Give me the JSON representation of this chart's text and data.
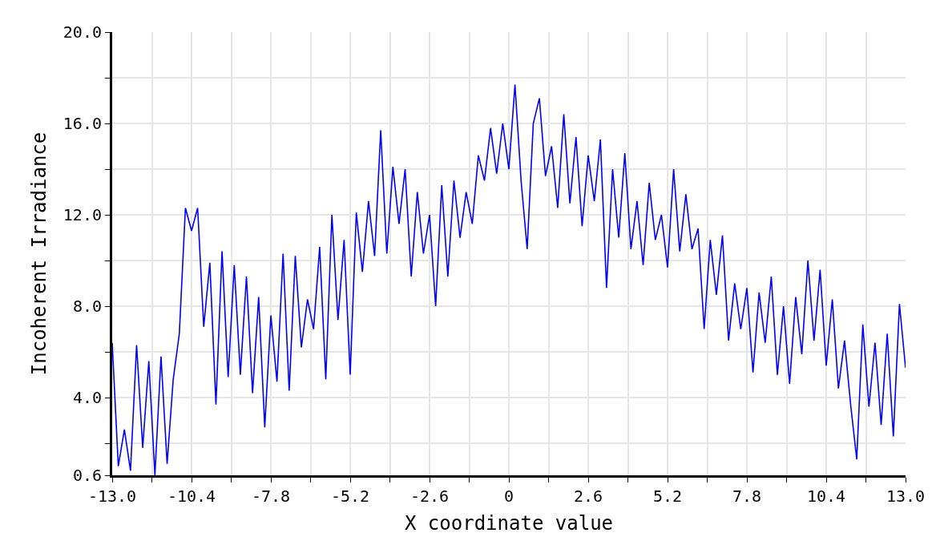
{
  "chart_data": {
    "type": "line",
    "xlabel": "X coordinate value",
    "ylabel": "Incoherent Irradiance",
    "x": [
      -13,
      -12.8,
      -12.6,
      -12.4,
      -12.2,
      -12,
      -11.8,
      -11.6,
      -11.4,
      -11.2,
      -11,
      -10.8,
      -10.6,
      -10.4,
      -10.2,
      -10,
      -9.8,
      -9.6,
      -9.4,
      -9.2,
      -9,
      -8.8,
      -8.6,
      -8.4,
      -8.2,
      -8,
      -7.8,
      -7.6,
      -7.4,
      -7.2,
      -7,
      -6.8,
      -6.6,
      -6.4,
      -6.2,
      -6,
      -5.8,
      -5.6,
      -5.4,
      -5.2,
      -5,
      -4.8,
      -4.6,
      -4.4,
      -4.2,
      -4,
      -3.8,
      -3.6,
      -3.4,
      -3.2,
      -3,
      -2.8,
      -2.6,
      -2.4,
      -2.2,
      -2,
      -1.8,
      -1.6,
      -1.4,
      -1.2,
      -1,
      -0.8,
      -0.6,
      -0.4,
      -0.2,
      0,
      0.2,
      0.4,
      0.6,
      0.8,
      1,
      1.2,
      1.4,
      1.6,
      1.8,
      2,
      2.2,
      2.4,
      2.6,
      2.8,
      3,
      3.2,
      3.4,
      3.6,
      3.8,
      4,
      4.2,
      4.4,
      4.6,
      4.8,
      5,
      5.2,
      5.4,
      5.6,
      5.8,
      6,
      6.2,
      6.4,
      6.6,
      6.8,
      7,
      7.2,
      7.4,
      7.6,
      7.8,
      8,
      8.2,
      8.4,
      8.6,
      8.8,
      9,
      9.2,
      9.4,
      9.6,
      9.8,
      10,
      10.2,
      10.4,
      10.6,
      10.8,
      11,
      11.2,
      11.4,
      11.6,
      11.8,
      12,
      12.2,
      12.4,
      12.6,
      12.8,
      13
    ],
    "series": [
      {
        "color": "#0000ff",
        "values": [
          6.4,
          1.0,
          2.6,
          0.8,
          6.3,
          1.8,
          5.6,
          0.6,
          5.8,
          1.1,
          4.8,
          6.8,
          12.3,
          11.3,
          12.3,
          7.1,
          9.9,
          3.7,
          10.4,
          4.9,
          9.8,
          5.0,
          9.3,
          4.2,
          8.4,
          2.7,
          7.6,
          4.7,
          10.3,
          4.3,
          10.2,
          6.2,
          8.3,
          7.0,
          10.6,
          4.8,
          12.0,
          7.4,
          10.9,
          5.0,
          12.1,
          9.5,
          12.6,
          10.2,
          15.7,
          10.3,
          14.1,
          11.6,
          14.0,
          9.3,
          13.0,
          10.3,
          12.0,
          8.0,
          13.3,
          9.3,
          13.5,
          11.0,
          13.0,
          11.6,
          14.6,
          13.5,
          15.8,
          13.8,
          16.0,
          14.0,
          17.7,
          13.5,
          10.5,
          16.0,
          17.1,
          13.7,
          15.0,
          12.3,
          16.4,
          12.5,
          15.4,
          11.5,
          14.6,
          12.6,
          15.3,
          8.8,
          14.0,
          11.0,
          14.7,
          10.5,
          12.6,
          9.8,
          13.4,
          10.9,
          12.0,
          9.7,
          14.0,
          10.4,
          12.9,
          10.5,
          11.4,
          7.0,
          10.9,
          8.5,
          11.1,
          6.5,
          9.0,
          7.0,
          8.8,
          5.1,
          8.6,
          6.4,
          9.3,
          5.0,
          8.0,
          4.6,
          8.4,
          5.9,
          10.0,
          6.5,
          9.6,
          5.4,
          8.3,
          4.4,
          6.5,
          3.7,
          1.3,
          7.2,
          3.6,
          6.4,
          2.8,
          6.8,
          2.3,
          8.1,
          5.3
        ]
      }
    ],
    "xlim": [
      -13,
      13
    ],
    "xticks": [
      {
        "value": -13,
        "label": "-13.0"
      },
      {
        "value": -11.7,
        "label": null
      },
      {
        "value": -10.4,
        "label": "-10.4"
      },
      {
        "value": -9.1,
        "label": null
      },
      {
        "value": -7.8,
        "label": "-7.8"
      },
      {
        "value": -6.5,
        "label": null
      },
      {
        "value": -5.2,
        "label": "-5.2"
      },
      {
        "value": -3.9,
        "label": null
      },
      {
        "value": -2.6,
        "label": "-2.6"
      },
      {
        "value": -1.3,
        "label": null
      },
      0,
      {
        "value": 1.3,
        "label": null
      },
      2.6,
      {
        "value": 3.9,
        "label": null
      },
      5.2,
      {
        "value": 6.5,
        "label": null
      },
      7.8,
      {
        "value": 9.1,
        "label": null
      },
      10.4,
      {
        "value": 11.7,
        "label": null
      },
      {
        "value": 13,
        "label": "13.0"
      }
    ],
    "ylim": [
      0.6,
      20
    ],
    "yticks": [
      0.6,
      {
        "value": 2,
        "label": null
      },
      {
        "value": 4,
        "label": "4.0"
      },
      {
        "value": 6,
        "label": null
      },
      {
        "value": 8,
        "label": "8.0"
      },
      {
        "value": 10,
        "label": null
      },
      {
        "value": 12,
        "label": "12.0"
      },
      {
        "value": 14,
        "label": null
      },
      {
        "value": 16,
        "label": "16.0"
      },
      {
        "value": 18,
        "label": null
      },
      {
        "value": 20,
        "label": "20.0"
      }
    ],
    "grid": true,
    "legend": false,
    "marker": "none",
    "line_style": "solid"
  }
}
